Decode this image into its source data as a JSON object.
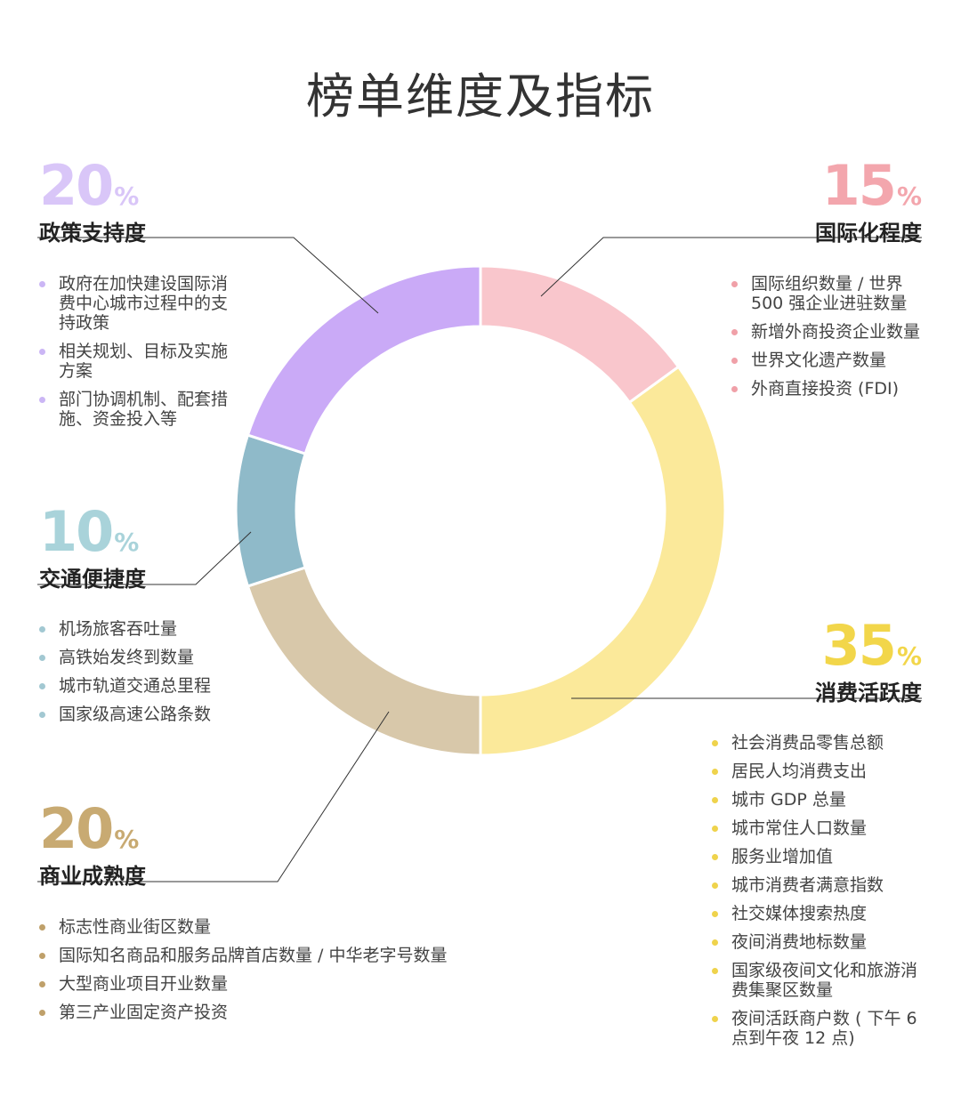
{
  "title": "榜单维度及指标",
  "chart_data": {
    "type": "pie",
    "title": "榜单维度及指标",
    "donut": true,
    "slices": [
      {
        "label": "国际化程度",
        "value": 15,
        "color": "#f9c6cc"
      },
      {
        "label": "消费活跃度",
        "value": 35,
        "color": "#fbe99a"
      },
      {
        "label": "商业成熟度",
        "value": 20,
        "color": "#d8c8aa"
      },
      {
        "label": "交通便捷度",
        "value": 10,
        "color": "#8fbac9"
      },
      {
        "label": "政策支持度",
        "value": 20,
        "color": "#caaaf7"
      }
    ]
  },
  "blocks": {
    "policy": {
      "pct": "20",
      "sym": "%",
      "label": "政策支持度",
      "pct_color": "#d9c6f8",
      "dot_color": "#cbb6f5",
      "items": [
        "政府在加快建设国际消费中心城市过程中的支持政策",
        "相关规划、目标及实施方案",
        "部门协调机制、配套措施、资金投入等"
      ]
    },
    "intl": {
      "pct": "15",
      "sym": "%",
      "label": "国际化程度",
      "pct_color": "#f3a6ad",
      "dot_color": "#f0a0a8",
      "items": [
        "国际组织数量 / 世界500 强企业进驻数量",
        "新增外商投资企业数量",
        "世界文化遗产数量",
        "外商直接投资 (FDI)"
      ]
    },
    "traffic": {
      "pct": "10",
      "sym": "%",
      "label": "交通便捷度",
      "pct_color": "#a9d3da",
      "dot_color": "#a2c8d2",
      "items": [
        "机场旅客吞吐量",
        "高铁始发终到数量",
        "城市轨道交通总里程",
        "国家级高速公路条数"
      ]
    },
    "consume": {
      "pct": "35",
      "sym": "%",
      "label": "消费活跃度",
      "pct_color": "#f2d64a",
      "dot_color": "#efd34c",
      "items": [
        "社会消费品零售总额",
        "居民人均消费支出",
        "城市 GDP 总量",
        "城市常住人口数量",
        "服务业增加值",
        "城市消费者满意指数",
        "社交媒体搜索热度",
        "夜间消费地标数量",
        "国家级夜间文化和旅游消费集聚区数量",
        "夜间活跃商户数 ( 下午 6 点到午夜 12 点)"
      ]
    },
    "business": {
      "pct": "20",
      "sym": "%",
      "label": "商业成熟度",
      "pct_color": "#c8aa72",
      "dot_color": "#bfa06a",
      "items": [
        "标志性商业街区数量",
        "国际知名商品和服务品牌首店数量 / 中华老字号数量",
        "大型商业项目开业数量",
        "第三产业固定资产投资"
      ]
    }
  }
}
